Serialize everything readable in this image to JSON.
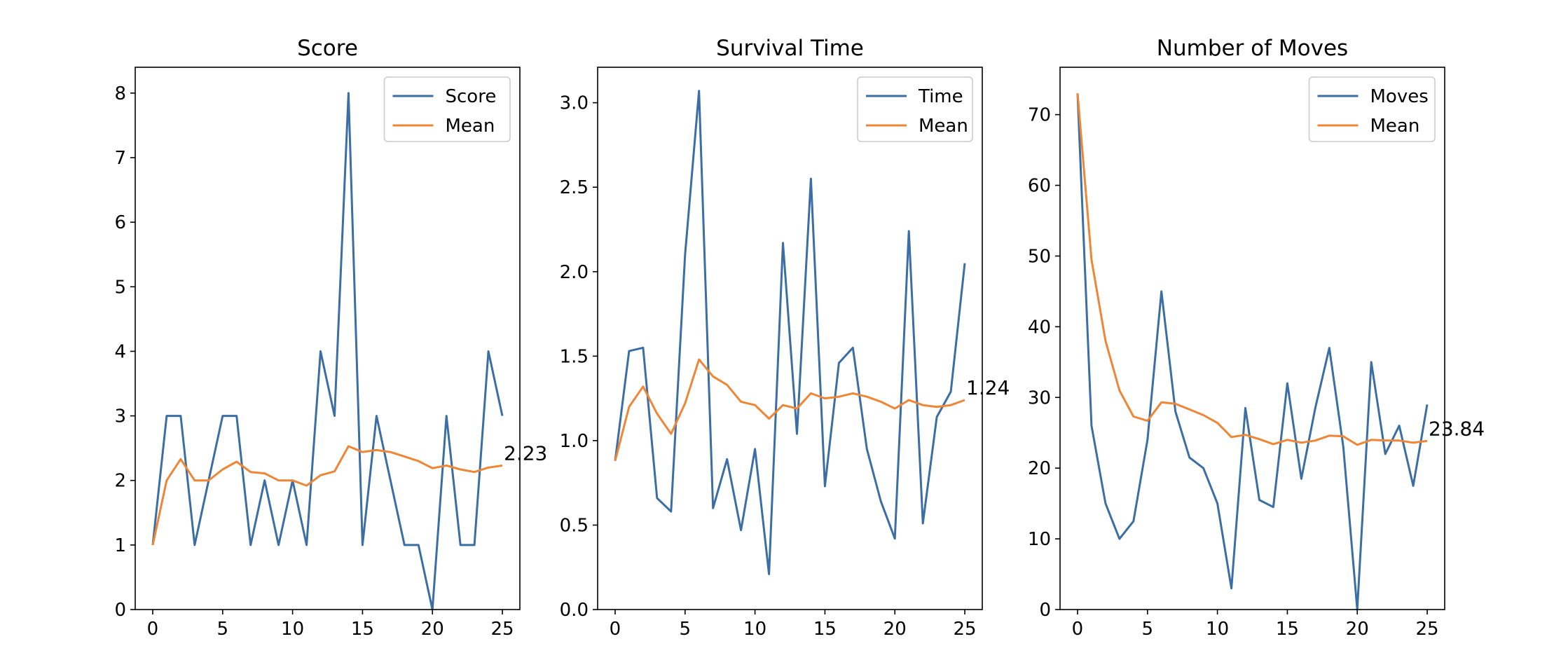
{
  "colors": {
    "primary": "#3b6ea5",
    "mean": "#ef8636",
    "axis": "#000000",
    "legend_border": "#cccccc"
  },
  "chart_data": [
    {
      "type": "line",
      "title": "Score",
      "xlabel": "",
      "ylabel": "",
      "x": [
        0,
        1,
        2,
        3,
        4,
        5,
        6,
        7,
        8,
        9,
        10,
        11,
        12,
        13,
        14,
        15,
        16,
        17,
        18,
        19,
        20,
        21,
        22,
        23,
        24,
        25
      ],
      "xlim": [
        -1.25,
        26.25
      ],
      "ylim": [
        0,
        8.4
      ],
      "xticks": [
        0,
        5,
        10,
        15,
        20,
        25
      ],
      "xtick_labels": [
        "0",
        "5",
        "10",
        "15",
        "20",
        "25"
      ],
      "yticks": [
        0,
        1,
        2,
        3,
        4,
        5,
        6,
        7,
        8
      ],
      "ytick_labels": [
        "0",
        "1",
        "2",
        "3",
        "4",
        "5",
        "6",
        "7",
        "8"
      ],
      "grid": false,
      "legend_position": "top-right",
      "series": [
        {
          "name": "Score",
          "color": "#3b6ea5",
          "values": [
            1,
            3,
            3,
            1,
            2,
            3,
            3,
            1,
            2,
            1,
            2,
            1,
            4,
            3,
            8,
            1,
            3,
            2,
            1,
            1,
            0,
            3,
            1,
            1,
            4,
            3
          ]
        },
        {
          "name": "Mean",
          "color": "#ef8636",
          "values": [
            1.0,
            2.0,
            2.33,
            2.0,
            2.0,
            2.17,
            2.29,
            2.13,
            2.11,
            2.0,
            2.0,
            1.92,
            2.08,
            2.14,
            2.53,
            2.44,
            2.47,
            2.44,
            2.37,
            2.3,
            2.19,
            2.23,
            2.17,
            2.13,
            2.2,
            2.23
          ]
        }
      ],
      "end_label": "2.23"
    },
    {
      "type": "line",
      "title": "Survival Time",
      "xlabel": "",
      "ylabel": "",
      "x": [
        0,
        1,
        2,
        3,
        4,
        5,
        6,
        7,
        8,
        9,
        10,
        11,
        12,
        13,
        14,
        15,
        16,
        17,
        18,
        19,
        20,
        21,
        22,
        23,
        24,
        25
      ],
      "xlim": [
        -1.25,
        26.25
      ],
      "ylim": [
        0,
        3.21
      ],
      "xticks": [
        0,
        5,
        10,
        15,
        20,
        25
      ],
      "xtick_labels": [
        "0",
        "5",
        "10",
        "15",
        "20",
        "25"
      ],
      "yticks": [
        0,
        0.5,
        1.0,
        1.5,
        2.0,
        2.5,
        3.0
      ],
      "ytick_labels": [
        "0.0",
        "0.5",
        "1.0",
        "1.5",
        "2.0",
        "2.5",
        "3.0"
      ],
      "grid": false,
      "legend_position": "top-right",
      "series": [
        {
          "name": "Time",
          "color": "#3b6ea5",
          "values": [
            0.88,
            1.53,
            1.55,
            0.66,
            0.58,
            2.1,
            3.07,
            0.6,
            0.89,
            0.47,
            0.95,
            0.21,
            2.17,
            1.04,
            2.55,
            0.73,
            1.46,
            1.55,
            0.95,
            0.64,
            0.42,
            2.24,
            0.51,
            1.14,
            1.29,
            2.05
          ]
        },
        {
          "name": "Mean",
          "color": "#ef8636",
          "values": [
            0.88,
            1.2,
            1.32,
            1.16,
            1.04,
            1.22,
            1.48,
            1.38,
            1.33,
            1.23,
            1.21,
            1.13,
            1.21,
            1.19,
            1.28,
            1.25,
            1.26,
            1.28,
            1.26,
            1.23,
            1.19,
            1.24,
            1.21,
            1.2,
            1.21,
            1.24
          ]
        }
      ],
      "end_label": "1.24"
    },
    {
      "type": "line",
      "title": "Number of Moves",
      "xlabel": "",
      "ylabel": "",
      "x": [
        0,
        1,
        2,
        3,
        4,
        5,
        6,
        7,
        8,
        9,
        10,
        11,
        12,
        13,
        14,
        15,
        16,
        17,
        18,
        19,
        20,
        21,
        22,
        23,
        24,
        25
      ],
      "xlim": [
        -1.25,
        26.25
      ],
      "ylim": [
        0,
        76.7
      ],
      "xticks": [
        0,
        5,
        10,
        15,
        20,
        25
      ],
      "xtick_labels": [
        "0",
        "5",
        "10",
        "15",
        "20",
        "25"
      ],
      "yticks": [
        0,
        10,
        20,
        30,
        40,
        50,
        60,
        70
      ],
      "ytick_labels": [
        "0",
        "10",
        "20",
        "30",
        "40",
        "50",
        "60",
        "70"
      ],
      "grid": false,
      "legend_position": "top-right",
      "series": [
        {
          "name": "Moves",
          "color": "#3b6ea5",
          "values": [
            73,
            26,
            15,
            10,
            12.5,
            24,
            45,
            28,
            21.5,
            20,
            15,
            3,
            28.5,
            15.5,
            14.5,
            32,
            18.5,
            28.5,
            37,
            23,
            0,
            35,
            22,
            26,
            17.5,
            29
          ]
        },
        {
          "name": "Mean",
          "color": "#ef8636",
          "values": [
            73,
            49.5,
            38,
            31,
            27.3,
            26.7,
            29.3,
            29.1,
            28.3,
            27.5,
            26.4,
            24.4,
            24.7,
            24.1,
            23.4,
            24,
            23.6,
            23.9,
            24.6,
            24.5,
            23.3,
            24,
            23.9,
            23.9,
            23.6,
            23.84
          ]
        }
      ],
      "end_label": "23.84"
    }
  ]
}
